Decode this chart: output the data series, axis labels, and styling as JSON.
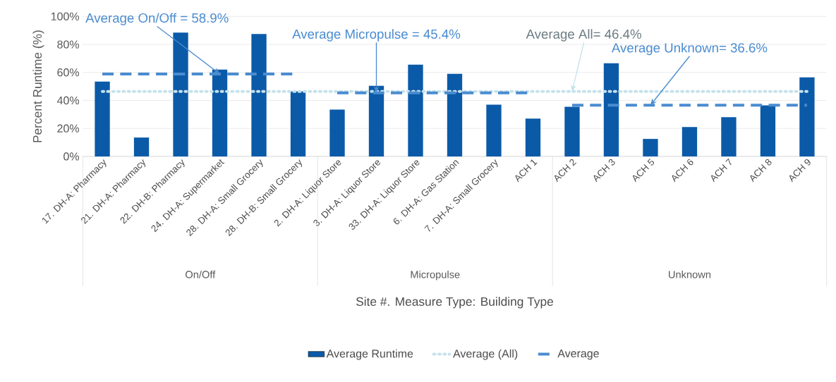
{
  "chart_data": {
    "type": "bar",
    "ylabel": "Percent Runtime (%)",
    "xlabel": "Site #. Measure Type: Building Type",
    "categories": [
      "17. DH-A: Pharmacy",
      "21. DH-A: Pharmacy",
      "22. DH-B: Pharmacy",
      "24. DH-A: Supermarket",
      "28. DH-A: Small Grocery",
      "28. DH-B: Small Grocery",
      "2. DH-A: Liquor Store",
      "3. DH-A: Liquor Store",
      "33. DH-A: Liquor Store",
      "6. DH-A: Gas Station",
      "7. DH-A: Small Grocery",
      "ACH 1",
      "ACH 2",
      "ACH 3",
      "ACH 5",
      "ACH 6",
      "ACH 7",
      "ACH 8",
      "ACH 9"
    ],
    "series": [
      {
        "name": "Average Runtime",
        "color": "#0b5aa8",
        "values": [
          53.5,
          13.5,
          88.5,
          62,
          87.5,
          46.5,
          33.5,
          50.5,
          65.5,
          59,
          37,
          27,
          35.5,
          66.5,
          12.5,
          21,
          28,
          36.5,
          56.5
        ]
      },
      {
        "name": "Average (All)",
        "type": "line",
        "line_style": "dotted",
        "color": "#c5e2ec",
        "values": [
          46.4,
          46.4,
          46.4,
          46.4,
          46.4,
          46.4,
          46.4,
          46.4,
          46.4,
          46.4,
          46.4,
          46.4,
          46.4,
          46.4,
          46.4,
          46.4,
          46.4,
          46.4,
          46.4
        ]
      },
      {
        "name": "Average",
        "type": "line",
        "line_style": "dashed",
        "color": "#4a8cd0",
        "values": [
          58.9,
          58.9,
          58.9,
          58.9,
          58.9,
          58.9,
          45.4,
          45.4,
          45.4,
          45.4,
          45.4,
          45.4,
          36.6,
          36.6,
          36.6,
          36.6,
          36.6,
          36.6,
          36.6
        ]
      }
    ],
    "ylim": [
      0,
      100
    ],
    "yticks": [
      {
        "value": 0,
        "label": "0%"
      },
      {
        "value": 20,
        "label": "20%"
      },
      {
        "value": 40,
        "label": "40%"
      },
      {
        "value": 60,
        "label": "60%"
      },
      {
        "value": 80,
        "label": "80%"
      },
      {
        "value": 100,
        "label": "100%"
      }
    ],
    "grid": "y",
    "legend": "bottom",
    "annotations": [
      {
        "text": "Average On/Off = 58.9%",
        "x": "24. DH-A: Supermarket",
        "y": 58.9
      },
      {
        "text": "Average Micropulse = 45.4%",
        "x": "3. DH-A: Liquor Store",
        "y": 45.4
      },
      {
        "text": "Average All= 46.4%",
        "x": "ACH 2",
        "y": 46.4
      },
      {
        "text": "Average Unknown= 36.6%",
        "x": "ACH 5",
        "y": 36.6
      },
      "On/Off",
      "Micropulse",
      "Unknown"
    ]
  }
}
